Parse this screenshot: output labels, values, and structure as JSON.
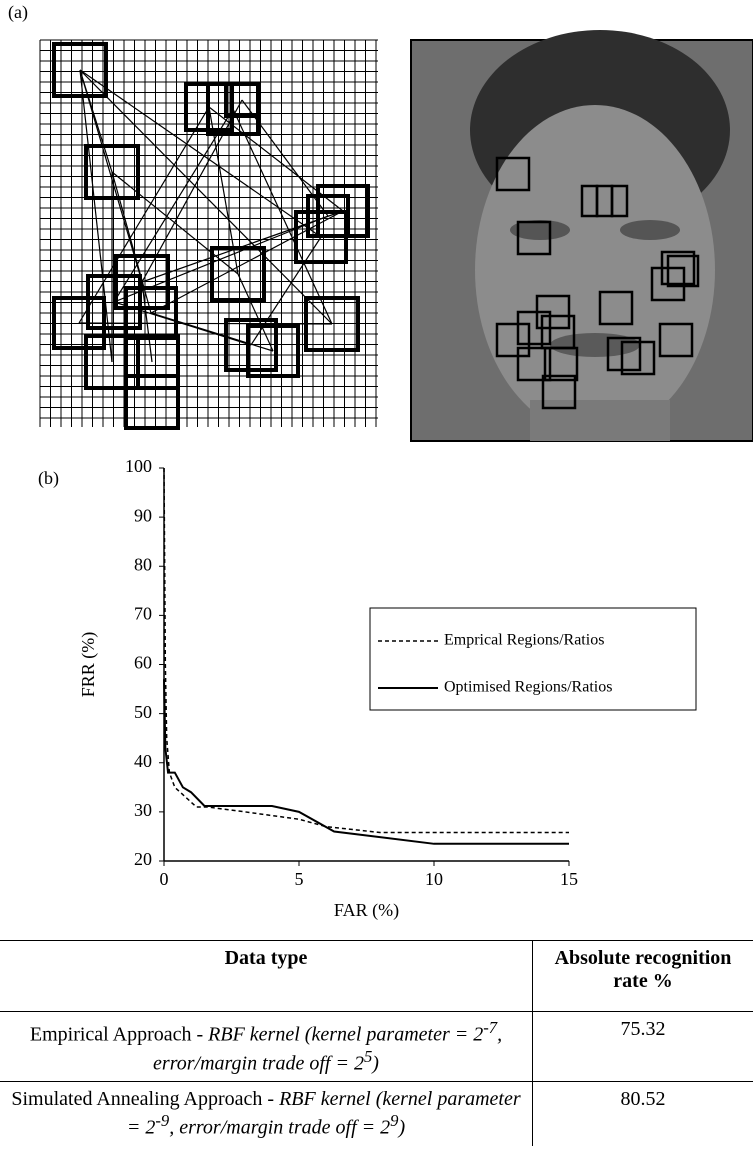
{
  "panel_a": {
    "label": "(a)"
  },
  "chart_data": {
    "type": "line",
    "panel_label": "(b)",
    "x_label": "FAR (%)",
    "y_label": "FRR (%)",
    "xlim": [
      0,
      15
    ],
    "xticks": [
      0,
      5,
      10,
      15
    ],
    "ylim": [
      20,
      100
    ],
    "yticks": [
      20,
      30,
      40,
      50,
      60,
      70,
      80,
      90,
      100
    ],
    "grid": false,
    "legend_position": "right",
    "series": [
      {
        "name": "Emprical Regions/Ratios",
        "color": "#000000",
        "dash": "dotted",
        "x": [
          0,
          0.05,
          0.1,
          0.2,
          0.4,
          0.8,
          1.2,
          1.6,
          3,
          5,
          6,
          8,
          15
        ],
        "values": [
          100,
          60,
          45,
          38,
          35,
          33,
          31,
          31,
          30,
          28.5,
          27,
          25.8,
          25.8
        ]
      },
      {
        "name": "Optimised Regions/Ratios",
        "color": "#000000",
        "dash": "solid",
        "x": [
          0,
          0.05,
          0.15,
          0.4,
          0.7,
          1.0,
          1.5,
          4,
          5,
          6.3,
          10,
          15
        ],
        "values": [
          57,
          43,
          38,
          38,
          35,
          34,
          31.2,
          31.2,
          30,
          26,
          23.5,
          23.5
        ]
      }
    ]
  },
  "table": {
    "header": [
      "Data type",
      "Absolute recognition rate %"
    ],
    "rows": [
      [
        [
          {
            "text": "Empirical Approach - "
          },
          {
            "text": "RBF kernel (kernel parameter = 2",
            "italic": true
          },
          {
            "text": "-7",
            "italic": true,
            "sup": true
          },
          {
            "text": ", error/margin trade off = 2",
            "italic": true
          },
          {
            "text": "5",
            "italic": true,
            "sup": true
          },
          {
            "text": ")",
            "italic": true
          }
        ],
        75.32
      ],
      [
        [
          {
            "text": "Simulated Annealing Approach - "
          },
          {
            "text": "RBF kernel (kernel parameter = 2",
            "italic": true
          },
          {
            "text": "-9",
            "italic": true,
            "sup": true
          },
          {
            "text": ", error/margin trade off = 2",
            "italic": true
          },
          {
            "text": "9",
            "italic": true,
            "sup": true
          },
          {
            "text": ")",
            "italic": true
          }
        ],
        80.52
      ]
    ]
  }
}
